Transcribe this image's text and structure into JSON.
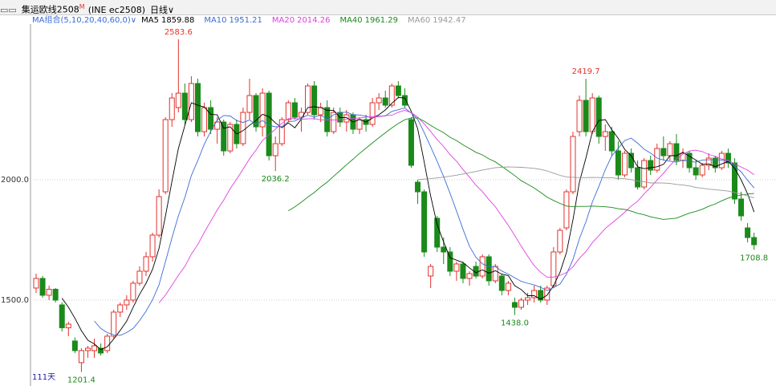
{
  "header": {
    "title": "集运欧线2508",
    "badge": "M",
    "code": "(INE ec2508)",
    "period": "日线∨",
    "ma_group": "MA组合(5,10,20,40,60,0)∨",
    "days": "111天"
  },
  "chart_data": {
    "type": "candlestick",
    "ylim": [
      1153,
      2687
    ],
    "yticks": [
      {
        "value": 1500,
        "label": "1500.0"
      },
      {
        "value": 2000,
        "label": "2000.0"
      }
    ],
    "up_color": "#e3322c",
    "down_color": "#1a8a1a",
    "grid": true,
    "ma": [
      {
        "name": "MA5",
        "value": 1859.88,
        "color": "#000000"
      },
      {
        "name": "MA10",
        "value": 1951.21,
        "color": "#3a6bd8"
      },
      {
        "name": "MA20",
        "value": 2014.26,
        "color": "#e040e0"
      },
      {
        "name": "MA40",
        "value": 1961.29,
        "color": "#1a8a1a"
      },
      {
        "name": "MA60",
        "value": 1942.47,
        "color": "#999999"
      }
    ],
    "annotations": [
      {
        "label": "2583.6",
        "value": 2583.6,
        "side": "high"
      },
      {
        "label": "2419.7",
        "value": 2419.7,
        "side": "high"
      },
      {
        "label": "1201.4",
        "value": 1201.4,
        "side": "low"
      },
      {
        "label": "2036.2",
        "value": 2036.2,
        "side": "low"
      },
      {
        "label": "1438.0",
        "value": 1438,
        "side": "low"
      },
      {
        "label": "1708.8",
        "value": 1708.8,
        "side": "low"
      }
    ],
    "ohlc": [
      [
        1550,
        1610,
        1530,
        1590
      ],
      [
        1590,
        1600,
        1510,
        1520
      ],
      [
        1520,
        1560,
        1500,
        1545
      ],
      [
        1545,
        1550,
        1490,
        1500
      ],
      [
        1480,
        1490,
        1370,
        1385
      ],
      [
        1385,
        1410,
        1350,
        1400
      ],
      [
        1330,
        1345,
        1280,
        1290
      ],
      [
        1240,
        1300,
        1201.4,
        1290
      ],
      [
        1290,
        1310,
        1260,
        1300
      ],
      [
        1290,
        1340,
        1260,
        1310
      ],
      [
        1300,
        1320,
        1270,
        1280
      ],
      [
        1290,
        1360,
        1280,
        1350
      ],
      [
        1350,
        1460,
        1340,
        1450
      ],
      [
        1450,
        1490,
        1430,
        1480
      ],
      [
        1480,
        1520,
        1460,
        1500
      ],
      [
        1500,
        1580,
        1490,
        1570
      ],
      [
        1570,
        1640,
        1560,
        1620
      ],
      [
        1620,
        1700,
        1600,
        1680
      ],
      [
        1680,
        1780,
        1660,
        1770
      ],
      [
        1770,
        1960,
        1760,
        1930
      ],
      [
        1950,
        2260,
        1940,
        2250
      ],
      [
        2250,
        2360,
        2220,
        2340
      ],
      [
        2300,
        2583.6,
        2280,
        2360
      ],
      [
        2360,
        2400,
        2230,
        2250
      ],
      [
        2250,
        2430,
        2240,
        2400
      ],
      [
        2400,
        2420,
        2180,
        2200
      ],
      [
        2200,
        2320,
        2180,
        2300
      ],
      [
        2300,
        2330,
        2190,
        2210
      ],
      [
        2210,
        2260,
        2150,
        2240
      ],
      [
        2240,
        2250,
        2100,
        2120
      ],
      [
        2120,
        2240,
        2110,
        2230
      ],
      [
        2230,
        2250,
        2130,
        2150
      ],
      [
        2150,
        2300,
        2140,
        2280
      ],
      [
        2280,
        2420,
        2250,
        2350
      ],
      [
        2350,
        2360,
        2200,
        2220
      ],
      [
        2220,
        2380,
        2180,
        2360
      ],
      [
        2360,
        2370,
        2080,
        2100
      ],
      [
        2100,
        2180,
        2036.2,
        2150
      ],
      [
        2150,
        2260,
        2140,
        2250
      ],
      [
        2250,
        2330,
        2240,
        2320
      ],
      [
        2320,
        2340,
        2250,
        2260
      ],
      [
        2260,
        2300,
        2200,
        2280
      ],
      [
        2280,
        2400,
        2270,
        2390
      ],
      [
        2390,
        2410,
        2250,
        2270
      ],
      [
        2270,
        2320,
        2240,
        2300
      ],
      [
        2300,
        2330,
        2180,
        2200
      ],
      [
        2200,
        2300,
        2190,
        2280
      ],
      [
        2280,
        2300,
        2220,
        2240
      ],
      [
        2240,
        2290,
        2200,
        2270
      ],
      [
        2270,
        2280,
        2190,
        2210
      ],
      [
        2210,
        2260,
        2190,
        2250
      ],
      [
        2250,
        2270,
        2200,
        2230
      ],
      [
        2230,
        2340,
        2220,
        2320
      ],
      [
        2320,
        2360,
        2290,
        2340
      ],
      [
        2340,
        2370,
        2300,
        2310
      ],
      [
        2310,
        2400,
        2300,
        2390
      ],
      [
        2390,
        2410,
        2340,
        2350
      ],
      [
        2350,
        2380,
        2300,
        2310
      ],
      [
        2250,
        2260,
        2050,
        2060
      ],
      [
        1990,
        2000,
        1900,
        1950
      ],
      [
        1950,
        1960,
        1680,
        1700
      ],
      [
        1600,
        1650,
        1550,
        1640
      ],
      [
        1840,
        1850,
        1700,
        1720
      ],
      [
        1720,
        1760,
        1650,
        1700
      ],
      [
        1700,
        1720,
        1600,
        1620
      ],
      [
        1620,
        1660,
        1580,
        1650
      ],
      [
        1650,
        1660,
        1570,
        1590
      ],
      [
        1590,
        1620,
        1560,
        1610
      ],
      [
        1640,
        1660,
        1590,
        1600
      ],
      [
        1600,
        1690,
        1590,
        1680
      ],
      [
        1680,
        1690,
        1560,
        1580
      ],
      [
        1580,
        1650,
        1570,
        1640
      ],
      [
        1600,
        1610,
        1520,
        1540
      ],
      [
        1540,
        1580,
        1520,
        1570
      ],
      [
        1490,
        1510,
        1438,
        1470
      ],
      [
        1470,
        1510,
        1460,
        1500
      ],
      [
        1500,
        1530,
        1480,
        1510
      ],
      [
        1510,
        1560,
        1490,
        1540
      ],
      [
        1540,
        1560,
        1490,
        1500
      ],
      [
        1500,
        1560,
        1480,
        1550
      ],
      [
        1560,
        1720,
        1550,
        1700
      ],
      [
        1700,
        1800,
        1690,
        1790
      ],
      [
        1800,
        1960,
        1790,
        1950
      ],
      [
        1950,
        2200,
        1940,
        2180
      ],
      [
        2200,
        2350,
        2180,
        2330
      ],
      [
        2330,
        2419.7,
        2180,
        2200
      ],
      [
        2200,
        2360,
        2190,
        2340
      ],
      [
        2340,
        2350,
        2150,
        2180
      ],
      [
        2180,
        2230,
        2120,
        2200
      ],
      [
        2200,
        2220,
        2100,
        2120
      ],
      [
        2120,
        2160,
        2000,
        2020
      ],
      [
        2020,
        2120,
        2010,
        2110
      ],
      [
        2110,
        2130,
        2030,
        2050
      ],
      [
        2050,
        2080,
        1960,
        1970
      ],
      [
        1970,
        2090,
        1960,
        2080
      ],
      [
        2080,
        2100,
        2020,
        2040
      ],
      [
        2040,
        2150,
        2030,
        2130
      ],
      [
        2130,
        2180,
        2080,
        2100
      ],
      [
        2100,
        2160,
        2080,
        2150
      ],
      [
        2150,
        2190,
        2060,
        2080
      ],
      [
        2080,
        2130,
        2050,
        2110
      ],
      [
        2110,
        2120,
        2030,
        2050
      ],
      [
        2050,
        2080,
        2000,
        2020
      ],
      [
        2020,
        2070,
        2010,
        2060
      ],
      [
        2060,
        2110,
        2040,
        2090
      ],
      [
        2090,
        2100,
        2030,
        2050
      ],
      [
        2050,
        2120,
        2040,
        2110
      ],
      [
        2110,
        2130,
        2050,
        2070
      ],
      [
        2070,
        2090,
        1900,
        1920
      ],
      [
        1920,
        1950,
        1830,
        1850
      ],
      [
        1800,
        1820,
        1740,
        1760
      ],
      [
        1760,
        1780,
        1708.8,
        1730
      ]
    ]
  }
}
